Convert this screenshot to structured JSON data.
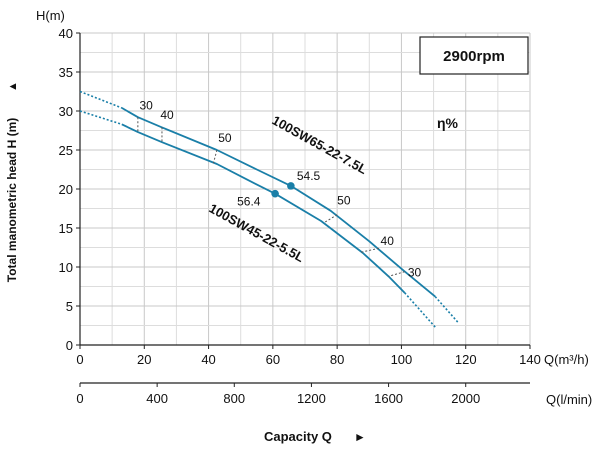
{
  "chart_data": {
    "type": "line",
    "title": "",
    "speed_label": "2900rpm",
    "efficiency_label": "η%",
    "ylabel": "Total manometric head H (m)",
    "ylabel_arrow": "▲",
    "y_unit": "H(m)",
    "xlabel": "Capacity Q",
    "xlabel_arrow": "►",
    "x_unit_top": "Q(m³/h)",
    "x_unit_bottom": "Q(l/min)",
    "xlim": [
      0,
      140
    ],
    "ylim": [
      0,
      40
    ],
    "x_ticks": [
      "0",
      "20",
      "40",
      "60",
      "80",
      "100",
      "120",
      "140"
    ],
    "y_ticks": [
      "0",
      "5",
      "10",
      "15",
      "20",
      "25",
      "30",
      "35",
      "40"
    ],
    "x2_ticks": [
      "0",
      "400",
      "800",
      "1200",
      "1600",
      "2000"
    ],
    "x2_tick_values": [
      0,
      400,
      800,
      1200,
      1600,
      2000
    ],
    "grid": true,
    "series": [
      {
        "name": "100SW65-22-7.5L",
        "color": "#1a7fa8",
        "dotted_start": [
          [
            0,
            32.5
          ],
          [
            13,
            30.4
          ]
        ],
        "points": [
          [
            13,
            30.4
          ],
          [
            18,
            29.2
          ],
          [
            25.5,
            27.9
          ],
          [
            42.6,
            25.0
          ],
          [
            55,
            22.5
          ],
          [
            65.6,
            20.4
          ],
          [
            78,
            17.2
          ],
          [
            90,
            13.3
          ],
          [
            100.5,
            9.6
          ],
          [
            110.5,
            6.2
          ]
        ],
        "dotted_end": [
          [
            110.5,
            6.2
          ],
          [
            117.6,
            2.9
          ]
        ],
        "bep": {
          "q": 65.6,
          "h": 20.4,
          "label": "54.5"
        }
      },
      {
        "name": "100SW45-22-5.5L",
        "color": "#1a7fa8",
        "dotted_start": [
          [
            0,
            30.0
          ],
          [
            13,
            28.3
          ]
        ],
        "points": [
          [
            13,
            28.3
          ],
          [
            18,
            27.3
          ],
          [
            25.5,
            26.0
          ],
          [
            42.6,
            23.2
          ],
          [
            52,
            21.2
          ],
          [
            60.7,
            19.4
          ],
          [
            75,
            15.9
          ],
          [
            88,
            11.8
          ],
          [
            96,
            8.8
          ],
          [
            101,
            6.7
          ]
        ],
        "dotted_end": [
          [
            101,
            6.7
          ],
          [
            110.5,
            2.3
          ]
        ],
        "bep": {
          "q": 60.7,
          "h": 19.4,
          "label": "56.4"
        }
      }
    ],
    "efficiency_marks": [
      {
        "label": "30",
        "q_top": 18,
        "h_top": 29.2,
        "q_bot": 18,
        "h_bot": 27.3,
        "lx": 18.5,
        "ly": 30.2
      },
      {
        "label": "40",
        "q_top": 25.5,
        "h_top": 27.9,
        "q_bot": 25.5,
        "h_bot": 26.0,
        "lx": 25,
        "ly": 29.0
      },
      {
        "label": "50",
        "q_top": 42.6,
        "h_top": 25.0,
        "q_bot": 41.5,
        "h_bot": 23.3,
        "lx": 43,
        "ly": 26.0
      },
      {
        "label": "50",
        "q_top": 80,
        "h_top": 16.7,
        "q_bot": 76,
        "h_bot": 15.7,
        "lx": 80,
        "ly": 18.0
      },
      {
        "label": "40",
        "q_top": 93,
        "h_top": 12.4,
        "q_bot": 87.5,
        "h_bot": 11.9,
        "lx": 93.5,
        "ly": 12.8
      },
      {
        "label": "30",
        "q_top": 101,
        "h_top": 9.4,
        "q_bot": 96,
        "h_bot": 8.8,
        "lx": 102,
        "ly": 8.8
      }
    ]
  }
}
